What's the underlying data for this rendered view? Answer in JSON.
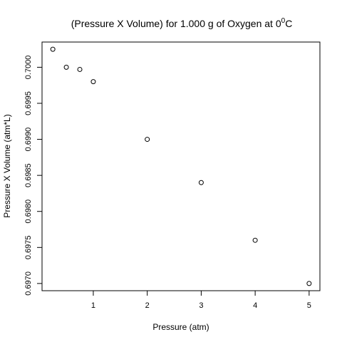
{
  "chart_data": {
    "type": "scatter",
    "title": "(Pressure X Volume) for 1.000 g of Oxygen at 0",
    "title_superscript": "0",
    "title_suffix": "C",
    "xlabel": "Pressure (atm)",
    "ylabel": "Pressure X Volume (atm*L)",
    "xlim": [
      0.05,
      5.2
    ],
    "ylim": [
      0.6969,
      0.70035
    ],
    "x_ticks": [
      1,
      2,
      3,
      4,
      5
    ],
    "x_tick_labels": [
      "1",
      "2",
      "3",
      "4",
      "5"
    ],
    "y_ticks": [
      0.697,
      0.6975,
      0.698,
      0.6985,
      0.699,
      0.6995,
      0.7
    ],
    "y_tick_labels": [
      "0.6970",
      "0.6975",
      "0.6980",
      "0.6985",
      "0.6990",
      "0.6995",
      "0.7000"
    ],
    "grid": false,
    "marker": "open-circle",
    "points": [
      {
        "x": 0.25,
        "y": 0.70025
      },
      {
        "x": 0.5,
        "y": 0.7
      },
      {
        "x": 0.75,
        "y": 0.69997
      },
      {
        "x": 1.0,
        "y": 0.6998
      },
      {
        "x": 2.0,
        "y": 0.699
      },
      {
        "x": 3.0,
        "y": 0.6984
      },
      {
        "x": 4.0,
        "y": 0.6976
      },
      {
        "x": 5.0,
        "y": 0.697
      }
    ]
  }
}
